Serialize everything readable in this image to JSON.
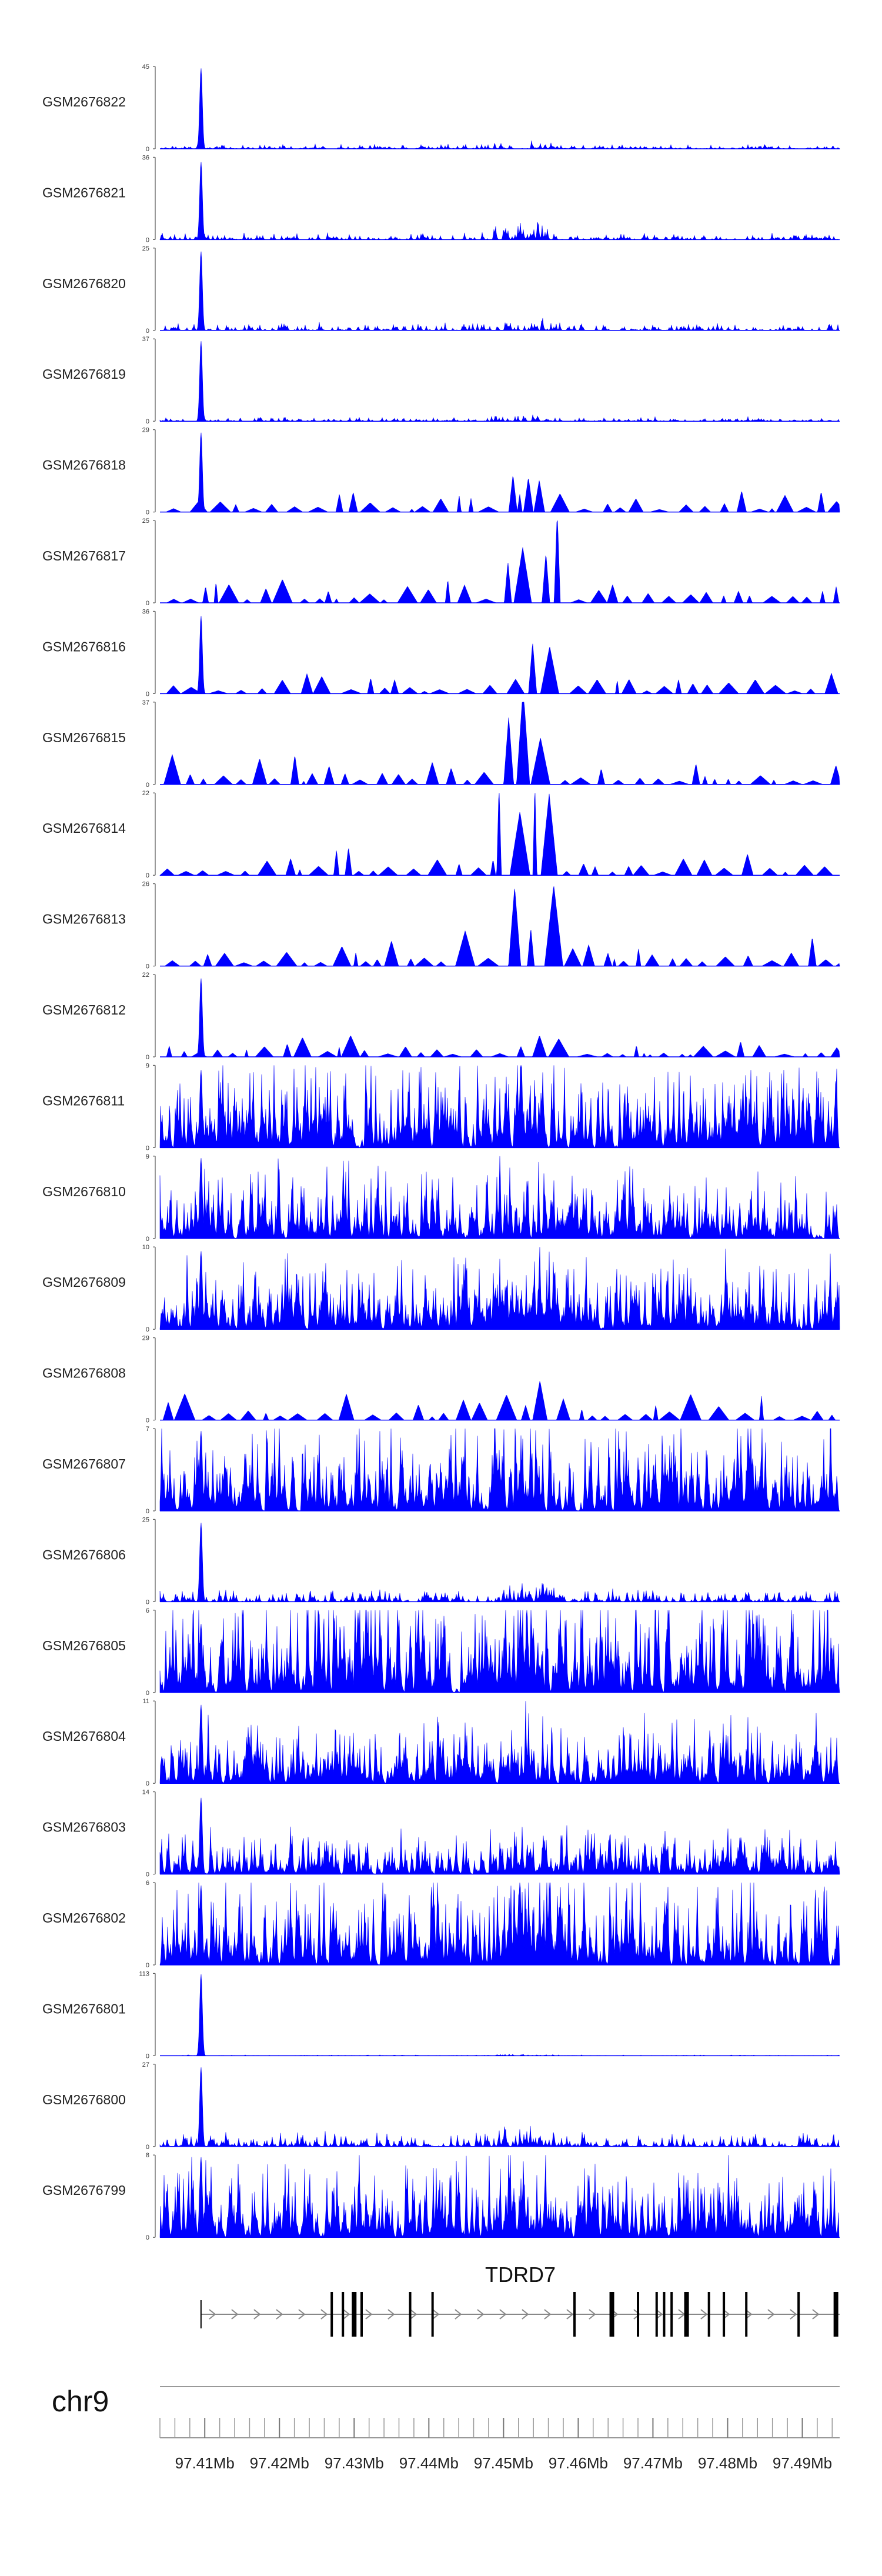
{
  "chart_data": {
    "type": "area",
    "region": {
      "chromosome": "chr9",
      "start_mb": 97.404,
      "end_mb": 97.495
    },
    "fill_color": "#0000ff",
    "track_ymin": 0,
    "peak_mb": 97.4095,
    "tracks": [
      {
        "name": "GSM2676822",
        "ymax": 45,
        "style": "spiky",
        "peak": 44,
        "background": 2.5,
        "hotspot": 5,
        "seed": 1
      },
      {
        "name": "GSM2676821",
        "ymax": 36,
        "style": "spiky",
        "peak": 34,
        "background": 3,
        "hotspot": 9,
        "seed": 2
      },
      {
        "name": "GSM2676820",
        "ymax": 25,
        "style": "spiky",
        "peak": 24,
        "background": 2.5,
        "hotspot": 4,
        "seed": 3
      },
      {
        "name": "GSM2676819",
        "ymax": 37,
        "style": "spiky",
        "peak": 36,
        "background": 2,
        "hotspot": 3,
        "seed": 4
      },
      {
        "name": "GSM2676818",
        "ymax": 29,
        "style": "triangles",
        "peak": 28,
        "background": 6,
        "hotspot": 12,
        "seed": 5
      },
      {
        "name": "GSM2676817",
        "ymax": 25,
        "style": "triangles",
        "peak": 0,
        "background": 5,
        "hotspot": 24,
        "seed": 6
      },
      {
        "name": "GSM2676816",
        "ymax": 36,
        "style": "triangles",
        "peak": 34,
        "background": 7,
        "hotspot": 17,
        "seed": 7
      },
      {
        "name": "GSM2676815",
        "ymax": 37,
        "style": "triangles",
        "peak": 0,
        "background": 10,
        "hotspot": 36,
        "seed": 8
      },
      {
        "name": "GSM2676814",
        "ymax": 22,
        "style": "triangles",
        "peak": 0,
        "background": 6,
        "hotspot": 22,
        "seed": 9
      },
      {
        "name": "GSM2676813",
        "ymax": 26,
        "style": "triangles",
        "peak": 0,
        "background": 7,
        "hotspot": 24,
        "seed": 10
      },
      {
        "name": "GSM2676812",
        "ymax": 22,
        "style": "triangles",
        "peak": 21,
        "background": 4,
        "hotspot": 6,
        "seed": 11
      },
      {
        "name": "GSM2676811",
        "ymax": 9,
        "style": "dense",
        "peak": 8.5,
        "background": 5,
        "hotspot": 6,
        "seed": 12
      },
      {
        "name": "GSM2676810",
        "ymax": 9,
        "style": "dense",
        "peak": 8.8,
        "background": 4,
        "hotspot": 4,
        "seed": 13
      },
      {
        "name": "GSM2676809",
        "ymax": 10,
        "style": "dense",
        "peak": 9.5,
        "background": 4.5,
        "hotspot": 4,
        "seed": 14
      },
      {
        "name": "GSM2676808",
        "ymax": 29,
        "style": "triangles",
        "peak": 0,
        "background": 8,
        "hotspot": 7,
        "seed": 15
      },
      {
        "name": "GSM2676807",
        "ymax": 7,
        "style": "dense",
        "peak": 6.8,
        "background": 4,
        "hotspot": 4,
        "seed": 16
      },
      {
        "name": "GSM2676806",
        "ymax": 25,
        "style": "spiky",
        "peak": 24,
        "background": 4,
        "hotspot": 5,
        "seed": 17
      },
      {
        "name": "GSM2676805",
        "ymax": 6,
        "style": "dense",
        "peak": 5,
        "background": 4.2,
        "hotspot": 4,
        "seed": 18
      },
      {
        "name": "GSM2676804",
        "ymax": 11,
        "style": "dense",
        "peak": 10.5,
        "background": 4.5,
        "hotspot": 4,
        "seed": 19
      },
      {
        "name": "GSM2676803",
        "ymax": 14,
        "style": "dense",
        "peak": 13,
        "background": 4,
        "hotspot": 3,
        "seed": 20
      },
      {
        "name": "GSM2676802",
        "ymax": 6,
        "style": "dense",
        "peak": 5.8,
        "background": 3.5,
        "hotspot": 4,
        "seed": 21
      },
      {
        "name": "GSM2676801",
        "ymax": 113,
        "style": "spiky",
        "peak": 112,
        "background": 1.2,
        "hotspot": 2,
        "seed": 22
      },
      {
        "name": "GSM2676800",
        "ymax": 27,
        "style": "spiky",
        "peak": 26,
        "background": 5,
        "hotspot": 6,
        "seed": 23
      },
      {
        "name": "GSM2676799",
        "ymax": 8,
        "style": "dense",
        "peak": 7.8,
        "background": 4,
        "hotspot": 5,
        "seed": 24
      }
    ],
    "gene": {
      "name": "TDRD7",
      "start_mb": 97.4095,
      "end_mb": 97.495,
      "strand": "+",
      "exons_mb": [
        97.427,
        97.4285,
        97.43,
        97.431,
        97.4375,
        97.4405,
        97.4595,
        97.4645,
        97.468,
        97.4705,
        97.4715,
        97.4725,
        97.4745,
        97.4775,
        97.4795,
        97.4825,
        97.4895,
        97.4945
      ]
    },
    "chromosome_label": "chr9",
    "x_ticks_mb": [
      97.41,
      97.42,
      97.43,
      97.44,
      97.45,
      97.46,
      97.47,
      97.48,
      97.49
    ],
    "x_tick_labels": [
      "97.41Mb",
      "97.42Mb",
      "97.43Mb",
      "97.44Mb",
      "97.45Mb",
      "97.46Mb",
      "97.47Mb",
      "97.48Mb",
      "97.49Mb"
    ],
    "x_minor_tick_step_mb": 0.002
  }
}
